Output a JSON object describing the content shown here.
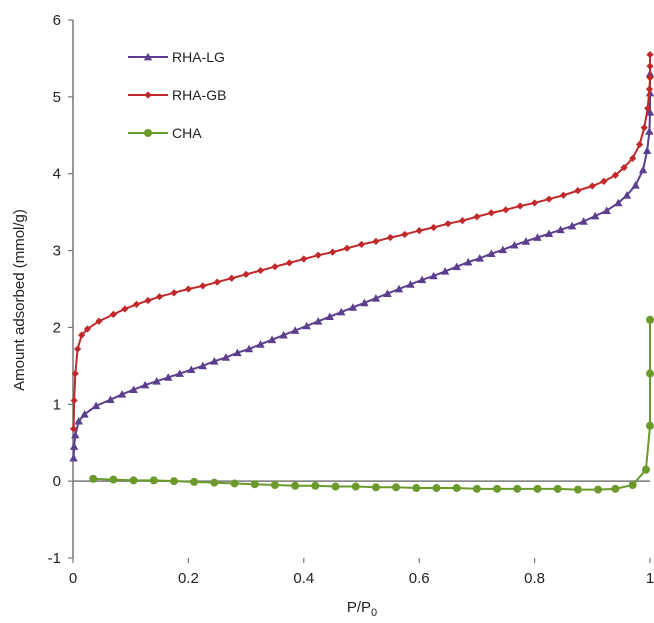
{
  "chart_data": {
    "type": "line",
    "xlabel": "P/P",
    "xlabel_sub": "0",
    "ylabel": "Amount adsorbed (mmol/g)",
    "xlim": [
      0,
      1
    ],
    "ylim": [
      -1,
      6
    ],
    "x_ticks": [
      "0",
      "0.2",
      "0.4",
      "0.6",
      "0.8",
      "1"
    ],
    "y_ticks": [
      "-1",
      "0",
      "1",
      "2",
      "3",
      "4",
      "5",
      "6"
    ],
    "grid": false,
    "legend_position": "top-left",
    "series": [
      {
        "name": "RHA-LG",
        "color": "#5b3f8e",
        "marker": "triangle",
        "x": [
          0.001,
          0.002,
          0.004,
          0.01,
          0.02,
          0.04,
          0.065,
          0.085,
          0.105,
          0.125,
          0.145,
          0.165,
          0.185,
          0.205,
          0.225,
          0.245,
          0.265,
          0.285,
          0.305,
          0.325,
          0.345,
          0.365,
          0.385,
          0.405,
          0.425,
          0.445,
          0.465,
          0.485,
          0.505,
          0.525,
          0.545,
          0.565,
          0.585,
          0.605,
          0.625,
          0.645,
          0.665,
          0.685,
          0.705,
          0.725,
          0.745,
          0.765,
          0.785,
          0.805,
          0.825,
          0.845,
          0.865,
          0.885,
          0.905,
          0.925,
          0.945,
          0.96,
          0.975,
          0.988,
          0.995,
          0.999,
          1.0,
          1.0,
          1.0
        ],
        "y": [
          0.3,
          0.45,
          0.6,
          0.78,
          0.87,
          0.98,
          1.06,
          1.13,
          1.19,
          1.25,
          1.3,
          1.35,
          1.4,
          1.45,
          1.5,
          1.56,
          1.61,
          1.67,
          1.72,
          1.78,
          1.84,
          1.9,
          1.96,
          2.02,
          2.08,
          2.14,
          2.2,
          2.26,
          2.32,
          2.38,
          2.44,
          2.5,
          2.56,
          2.62,
          2.67,
          2.73,
          2.79,
          2.85,
          2.9,
          2.96,
          3.01,
          3.07,
          3.12,
          3.17,
          3.22,
          3.27,
          3.32,
          3.38,
          3.45,
          3.52,
          3.62,
          3.72,
          3.85,
          4.05,
          4.3,
          4.55,
          4.8,
          5.05,
          5.3
        ]
      },
      {
        "name": "RHA-GB",
        "color": "#c0282a",
        "marker": "diamond",
        "x": [
          0.001,
          0.002,
          0.004,
          0.008,
          0.015,
          0.025,
          0.045,
          0.07,
          0.09,
          0.11,
          0.13,
          0.15,
          0.175,
          0.2,
          0.225,
          0.25,
          0.275,
          0.3,
          0.325,
          0.35,
          0.375,
          0.4,
          0.425,
          0.45,
          0.475,
          0.5,
          0.525,
          0.55,
          0.575,
          0.6,
          0.625,
          0.65,
          0.675,
          0.7,
          0.725,
          0.75,
          0.775,
          0.8,
          0.825,
          0.85,
          0.875,
          0.9,
          0.92,
          0.94,
          0.955,
          0.97,
          0.982,
          0.99,
          0.996,
          0.999,
          1.0,
          1.0,
          1.0
        ],
        "y": [
          0.68,
          1.05,
          1.4,
          1.72,
          1.9,
          1.98,
          2.08,
          2.17,
          2.24,
          2.3,
          2.35,
          2.4,
          2.45,
          2.5,
          2.54,
          2.59,
          2.64,
          2.69,
          2.74,
          2.79,
          2.84,
          2.89,
          2.94,
          2.98,
          3.03,
          3.08,
          3.12,
          3.17,
          3.21,
          3.26,
          3.3,
          3.35,
          3.39,
          3.44,
          3.49,
          3.53,
          3.58,
          3.62,
          3.67,
          3.72,
          3.78,
          3.84,
          3.9,
          3.98,
          4.08,
          4.2,
          4.38,
          4.6,
          4.85,
          5.1,
          5.25,
          5.4,
          5.55
        ]
      },
      {
        "name": "CHA",
        "color": "#6b9a2b",
        "marker": "circle",
        "x": [
          0.035,
          0.07,
          0.105,
          0.14,
          0.175,
          0.21,
          0.245,
          0.28,
          0.315,
          0.35,
          0.385,
          0.42,
          0.455,
          0.49,
          0.525,
          0.56,
          0.595,
          0.63,
          0.665,
          0.7,
          0.735,
          0.77,
          0.805,
          0.84,
          0.875,
          0.91,
          0.94,
          0.97,
          0.993,
          1.0,
          1.0,
          1.0
        ],
        "y": [
          0.03,
          0.02,
          0.01,
          0.01,
          0.0,
          -0.01,
          -0.02,
          -0.03,
          -0.04,
          -0.05,
          -0.06,
          -0.06,
          -0.07,
          -0.07,
          -0.08,
          -0.08,
          -0.09,
          -0.09,
          -0.09,
          -0.1,
          -0.1,
          -0.1,
          -0.1,
          -0.1,
          -0.11,
          -0.11,
          -0.1,
          -0.05,
          0.15,
          0.72,
          1.4,
          2.1
        ]
      }
    ]
  }
}
